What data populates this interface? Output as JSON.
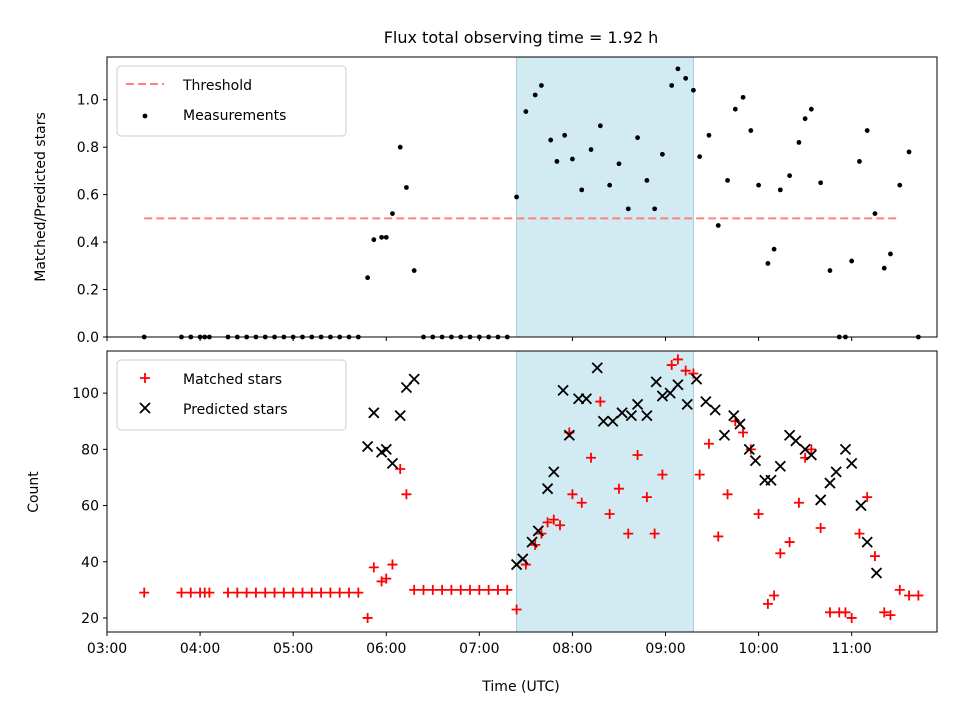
{
  "chart_data": [
    {
      "type": "scatter",
      "title": "Flux total observing time = 1.92 h",
      "xlabel": "",
      "ylabel": "Matched/Predicted stars",
      "ylim": [
        0.0,
        1.18
      ],
      "yticks": [
        "0.0",
        "0.2",
        "0.4",
        "0.6",
        "0.8",
        "1.0"
      ],
      "xlim": [
        "03:00",
        "11:55"
      ],
      "highlight_span": [
        "07:24",
        "09:18"
      ],
      "highlight_color": "#add8e6",
      "legend_location": "upper left",
      "threshold": {
        "name": "Threshold",
        "value": 0.5,
        "x_range": [
          "03:24",
          "11:30"
        ],
        "color": "#ff8080"
      },
      "series": [
        {
          "name": "Measurements",
          "color": "#000000",
          "marker": "dot",
          "points": [
            [
              "03:24",
              0
            ],
            [
              "03:48",
              0
            ],
            [
              "03:54",
              0
            ],
            [
              "04:00",
              0
            ],
            [
              "04:03",
              0
            ],
            [
              "04:06",
              0
            ],
            [
              "04:18",
              0
            ],
            [
              "04:24",
              0
            ],
            [
              "04:30",
              0
            ],
            [
              "04:36",
              0
            ],
            [
              "04:42",
              0
            ],
            [
              "04:48",
              0
            ],
            [
              "04:54",
              0
            ],
            [
              "05:00",
              0
            ],
            [
              "05:06",
              0
            ],
            [
              "05:12",
              0
            ],
            [
              "05:18",
              0
            ],
            [
              "05:24",
              0
            ],
            [
              "05:30",
              0
            ],
            [
              "05:36",
              0
            ],
            [
              "05:42",
              0
            ],
            [
              "05:48",
              0.25
            ],
            [
              "05:52",
              0.41
            ],
            [
              "05:57",
              0.42
            ],
            [
              "06:00",
              0.42
            ],
            [
              "06:04",
              0.52
            ],
            [
              "06:09",
              0.8
            ],
            [
              "06:13",
              0.63
            ],
            [
              "06:18",
              0.28
            ],
            [
              "06:24",
              0
            ],
            [
              "06:30",
              0
            ],
            [
              "06:36",
              0
            ],
            [
              "06:42",
              0
            ],
            [
              "06:48",
              0
            ],
            [
              "06:54",
              0
            ],
            [
              "07:00",
              0
            ],
            [
              "07:06",
              0
            ],
            [
              "07:12",
              0
            ],
            [
              "07:18",
              0
            ],
            [
              "07:24",
              0.59
            ],
            [
              "07:30",
              0.95
            ],
            [
              "07:36",
              1.02
            ],
            [
              "07:40",
              1.06
            ],
            [
              "07:46",
              0.83
            ],
            [
              "07:50",
              0.74
            ],
            [
              "07:55",
              0.85
            ],
            [
              "08:00",
              0.75
            ],
            [
              "08:06",
              0.62
            ],
            [
              "08:12",
              0.79
            ],
            [
              "08:18",
              0.89
            ],
            [
              "08:24",
              0.64
            ],
            [
              "08:30",
              0.73
            ],
            [
              "08:36",
              0.54
            ],
            [
              "08:42",
              0.84
            ],
            [
              "08:48",
              0.66
            ],
            [
              "08:53",
              0.54
            ],
            [
              "08:58",
              0.77
            ],
            [
              "09:04",
              1.06
            ],
            [
              "09:08",
              1.13
            ],
            [
              "09:13",
              1.09
            ],
            [
              "09:18",
              1.04
            ],
            [
              "09:22",
              0.76
            ],
            [
              "09:28",
              0.85
            ],
            [
              "09:34",
              0.47
            ],
            [
              "09:40",
              0.66
            ],
            [
              "09:45",
              0.96
            ],
            [
              "09:50",
              1.01
            ],
            [
              "09:55",
              0.87
            ],
            [
              "10:00",
              0.64
            ],
            [
              "10:06",
              0.31
            ],
            [
              "10:10",
              0.37
            ],
            [
              "10:14",
              0.62
            ],
            [
              "10:20",
              0.68
            ],
            [
              "10:26",
              0.82
            ],
            [
              "10:30",
              0.92
            ],
            [
              "10:34",
              0.96
            ],
            [
              "10:40",
              0.65
            ],
            [
              "10:46",
              0.28
            ],
            [
              "10:52",
              0
            ],
            [
              "10:56",
              0
            ],
            [
              "11:00",
              0.32
            ],
            [
              "11:05",
              0.74
            ],
            [
              "11:10",
              0.87
            ],
            [
              "11:15",
              0.52
            ],
            [
              "11:21",
              0.29
            ],
            [
              "11:25",
              0.35
            ],
            [
              "11:31",
              0.64
            ],
            [
              "11:37",
              0.78
            ],
            [
              "11:43",
              0
            ]
          ]
        }
      ]
    },
    {
      "type": "scatter",
      "title": "",
      "xlabel": "Time (UTC)",
      "ylabel": "Count",
      "ylim": [
        15,
        115
      ],
      "yticks": [
        "20",
        "40",
        "60",
        "80",
        "100"
      ],
      "xlim": [
        "03:00",
        "11:55"
      ],
      "xticks": [
        "03:00",
        "04:00",
        "05:00",
        "06:00",
        "07:00",
        "08:00",
        "09:00",
        "10:00",
        "11:00"
      ],
      "highlight_span": [
        "07:24",
        "09:18"
      ],
      "legend_location": "upper left",
      "series": [
        {
          "name": "Matched stars",
          "color": "#ff0000",
          "marker": "plus",
          "points": [
            [
              "03:24",
              29
            ],
            [
              "03:48",
              29
            ],
            [
              "03:54",
              29
            ],
            [
              "04:00",
              29
            ],
            [
              "04:03",
              29
            ],
            [
              "04:06",
              29
            ],
            [
              "04:18",
              29
            ],
            [
              "04:24",
              29
            ],
            [
              "04:30",
              29
            ],
            [
              "04:36",
              29
            ],
            [
              "04:42",
              29
            ],
            [
              "04:48",
              29
            ],
            [
              "04:54",
              29
            ],
            [
              "05:00",
              29
            ],
            [
              "05:06",
              29
            ],
            [
              "05:12",
              29
            ],
            [
              "05:18",
              29
            ],
            [
              "05:24",
              29
            ],
            [
              "05:30",
              29
            ],
            [
              "05:36",
              29
            ],
            [
              "05:42",
              29
            ],
            [
              "05:48",
              20
            ],
            [
              "05:52",
              38
            ],
            [
              "05:57",
              33
            ],
            [
              "06:00",
              34
            ],
            [
              "06:04",
              39
            ],
            [
              "06:09",
              73
            ],
            [
              "06:13",
              64
            ],
            [
              "06:18",
              30
            ],
            [
              "06:24",
              30
            ],
            [
              "06:30",
              30
            ],
            [
              "06:36",
              30
            ],
            [
              "06:42",
              30
            ],
            [
              "06:48",
              30
            ],
            [
              "06:54",
              30
            ],
            [
              "07:00",
              30
            ],
            [
              "07:06",
              30
            ],
            [
              "07:12",
              30
            ],
            [
              "07:18",
              30
            ],
            [
              "07:24",
              23
            ],
            [
              "07:30",
              39
            ],
            [
              "07:36",
              46
            ],
            [
              "07:40",
              50
            ],
            [
              "07:44",
              54
            ],
            [
              "07:48",
              55
            ],
            [
              "07:52",
              53
            ],
            [
              "07:58",
              86
            ],
            [
              "08:00",
              64
            ],
            [
              "08:06",
              61
            ],
            [
              "08:12",
              77
            ],
            [
              "08:18",
              97
            ],
            [
              "08:24",
              57
            ],
            [
              "08:30",
              66
            ],
            [
              "08:36",
              50
            ],
            [
              "08:42",
              78
            ],
            [
              "08:48",
              63
            ],
            [
              "08:53",
              50
            ],
            [
              "08:58",
              71
            ],
            [
              "09:04",
              110
            ],
            [
              "09:08",
              112
            ],
            [
              "09:13",
              108
            ],
            [
              "09:18",
              107
            ],
            [
              "09:22",
              71
            ],
            [
              "09:28",
              82
            ],
            [
              "09:34",
              49
            ],
            [
              "09:40",
              64
            ],
            [
              "09:45",
              90
            ],
            [
              "09:50",
              86
            ],
            [
              "09:55",
              80
            ],
            [
              "10:00",
              57
            ],
            [
              "10:06",
              25
            ],
            [
              "10:10",
              28
            ],
            [
              "10:14",
              43
            ],
            [
              "10:20",
              47
            ],
            [
              "10:26",
              61
            ],
            [
              "10:30",
              77
            ],
            [
              "10:34",
              80
            ],
            [
              "10:40",
              52
            ],
            [
              "10:46",
              22
            ],
            [
              "10:52",
              22
            ],
            [
              "10:56",
              22
            ],
            [
              "11:00",
              20
            ],
            [
              "11:05",
              50
            ],
            [
              "11:10",
              63
            ],
            [
              "11:15",
              42
            ],
            [
              "11:21",
              22
            ],
            [
              "11:25",
              21
            ],
            [
              "11:31",
              30
            ],
            [
              "11:37",
              28
            ],
            [
              "11:43",
              28
            ]
          ]
        },
        {
          "name": "Predicted stars",
          "color": "#000000",
          "marker": "cross",
          "points": [
            [
              "05:48",
              81
            ],
            [
              "05:52",
              93
            ],
            [
              "05:57",
              79
            ],
            [
              "06:00",
              80
            ],
            [
              "06:04",
              75
            ],
            [
              "06:09",
              92
            ],
            [
              "06:13",
              102
            ],
            [
              "06:18",
              105
            ],
            [
              "07:24",
              39
            ],
            [
              "07:28",
              41
            ],
            [
              "07:34",
              47
            ],
            [
              "07:38",
              51
            ],
            [
              "07:44",
              66
            ],
            [
              "07:48",
              72
            ],
            [
              "07:54",
              101
            ],
            [
              "07:58",
              85
            ],
            [
              "08:04",
              98
            ],
            [
              "08:09",
              98
            ],
            [
              "08:16",
              109
            ],
            [
              "08:20",
              90
            ],
            [
              "08:26",
              90
            ],
            [
              "08:32",
              93
            ],
            [
              "08:38",
              92
            ],
            [
              "08:42",
              96
            ],
            [
              "08:48",
              92
            ],
            [
              "08:54",
              104
            ],
            [
              "08:58",
              99
            ],
            [
              "09:03",
              100
            ],
            [
              "09:08",
              103
            ],
            [
              "09:14",
              96
            ],
            [
              "09:20",
              105
            ],
            [
              "09:26",
              97
            ],
            [
              "09:32",
              94
            ],
            [
              "09:38",
              85
            ],
            [
              "09:44",
              92
            ],
            [
              "09:48",
              89
            ],
            [
              "09:54",
              80
            ],
            [
              "09:58",
              76
            ],
            [
              "10:04",
              69
            ],
            [
              "10:08",
              69
            ],
            [
              "10:14",
              74
            ],
            [
              "10:20",
              85
            ],
            [
              "10:24",
              83
            ],
            [
              "10:30",
              80
            ],
            [
              "10:34",
              78
            ],
            [
              "10:40",
              62
            ],
            [
              "10:46",
              68
            ],
            [
              "10:50",
              72
            ],
            [
              "10:56",
              80
            ],
            [
              "11:00",
              75
            ],
            [
              "11:06",
              60
            ],
            [
              "11:10",
              47
            ],
            [
              "11:16",
              36
            ]
          ]
        }
      ]
    }
  ]
}
